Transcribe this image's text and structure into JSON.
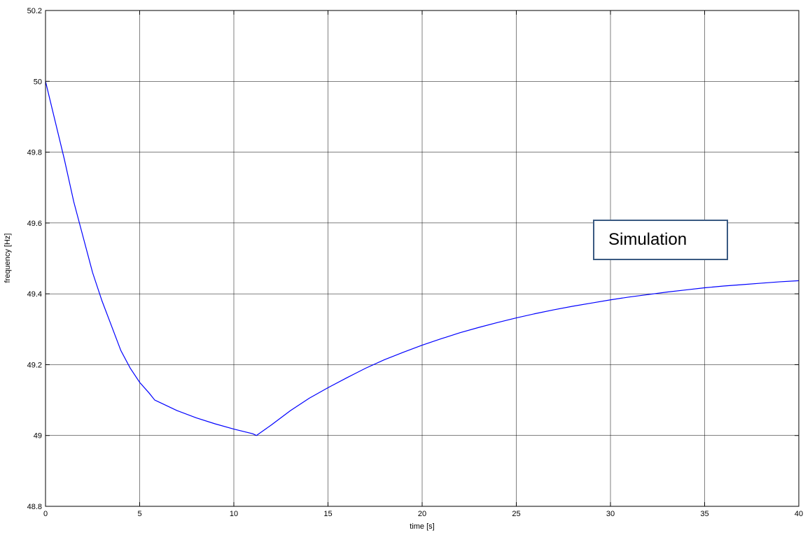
{
  "chart_data": {
    "type": "line",
    "title": "",
    "xlabel": "time [s]",
    "ylabel": "frequency [Hz]",
    "xlim": [
      0,
      40
    ],
    "ylim": [
      48.8,
      50.2
    ],
    "x_ticks": [
      0,
      5,
      10,
      15,
      20,
      25,
      30,
      35,
      40
    ],
    "y_ticks": [
      48.8,
      49,
      49.2,
      49.4,
      49.6,
      49.8,
      50,
      50.2
    ],
    "x_tick_labels": [
      "0",
      "5",
      "10",
      "15",
      "20",
      "25",
      "30",
      "35",
      "40"
    ],
    "y_tick_labels": [
      "48.8",
      "49",
      "49.2",
      "49.4",
      "49.6",
      "49.8",
      "50",
      "50.2"
    ],
    "grid": true,
    "annotation": "Simulation",
    "colors": {
      "line": "#0000ff",
      "grid": "#000000",
      "annotation_border": "#3a5a82"
    },
    "series": [
      {
        "x": [
          0,
          0.5,
          1,
          1.5,
          2,
          2.5,
          3,
          3.5,
          4,
          4.5,
          5,
          5.5,
          5.8,
          6,
          7,
          8,
          9,
          10,
          11,
          11.2,
          12,
          13,
          14,
          15,
          16,
          17,
          18,
          19,
          20,
          21,
          22,
          23,
          24,
          25,
          26,
          27,
          28,
          29,
          30,
          31,
          32,
          33,
          34,
          35,
          36,
          37,
          38,
          39,
          40
        ],
        "y": [
          50.0,
          49.89,
          49.78,
          49.66,
          49.56,
          49.46,
          49.38,
          49.31,
          49.24,
          49.19,
          49.15,
          49.12,
          49.1,
          49.095,
          49.07,
          49.05,
          49.033,
          49.018,
          49.005,
          49.0,
          49.03,
          49.07,
          49.105,
          49.135,
          49.163,
          49.19,
          49.214,
          49.235,
          49.255,
          49.273,
          49.29,
          49.305,
          49.319,
          49.332,
          49.344,
          49.355,
          49.365,
          49.374,
          49.383,
          49.391,
          49.398,
          49.405,
          49.411,
          49.417,
          49.422,
          49.426,
          49.43,
          49.434,
          49.437
        ]
      }
    ]
  }
}
